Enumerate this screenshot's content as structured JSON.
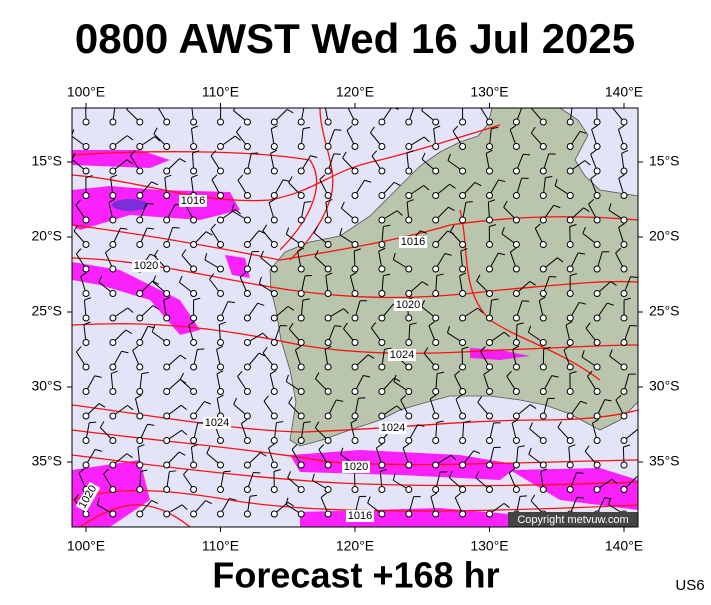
{
  "title": "0800 AWST Wed 16 Jul 2025",
  "footer": "Forecast +168 hr",
  "corner_code": "US6",
  "copyright": "Copyright metvuw.com",
  "top_axis": [
    "100°E",
    "110°E",
    "120°E",
    "130°E",
    "140°E"
  ],
  "bottom_axis": [
    "100°E",
    "110°E",
    "120°E",
    "130°E",
    "140°E"
  ],
  "left_axis": [
    "15°S",
    "20°S",
    "25°S",
    "30°S",
    "35°S"
  ],
  "right_axis": [
    "15°S",
    "20°S",
    "25°S",
    "30°S",
    "35°S"
  ],
  "isobar_labels": [
    "1016",
    "1020",
    "1016",
    "1020",
    "1024",
    "1024",
    "1024",
    "1020",
    "1020",
    "1016"
  ]
}
